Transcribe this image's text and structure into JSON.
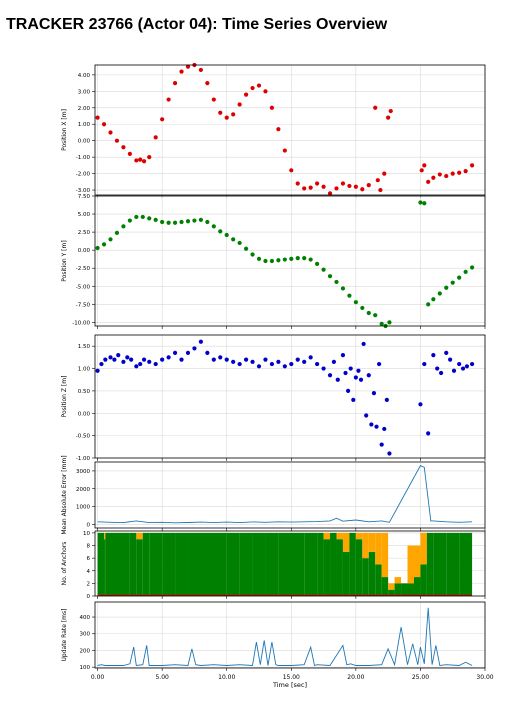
{
  "title": "TRACKER 23766 (Actor 04): Time Series Overview",
  "chart_data": [
    {
      "type": "scatter",
      "ylabel": "Position X [m]",
      "ylim": [
        -3.3,
        4.6
      ],
      "yticks": [
        "4.00",
        "3.00",
        "2.00",
        "1.00",
        "0.00",
        "-1.00",
        "-2.00",
        "-3.00"
      ],
      "ytick_values": [
        4,
        3,
        2,
        1,
        0,
        -1,
        -2,
        -3
      ],
      "xlim": [
        -0.2,
        30
      ],
      "color": "#dd0000",
      "grid": true,
      "x": [
        0,
        0.5,
        1,
        1.5,
        2,
        2.5,
        3,
        3.3,
        3.6,
        4,
        4.5,
        5,
        5.5,
        6,
        6.5,
        7,
        7.5,
        8,
        8.5,
        9,
        9.5,
        10,
        10.5,
        11,
        11.5,
        12,
        12.5,
        13,
        13.5,
        14,
        14.5,
        15,
        15.5,
        16,
        16.5,
        17,
        17.5,
        18,
        18.5,
        19,
        19.5,
        20,
        20.5,
        21,
        21.5,
        21.7,
        21.9,
        22.2,
        22.5,
        22.7,
        25.1,
        25.3,
        25.6,
        26,
        26.5,
        27,
        27.5,
        28,
        28.5,
        29
      ],
      "y": [
        1.4,
        1.0,
        0.5,
        0.0,
        -0.4,
        -0.8,
        -1.2,
        -1.15,
        -1.25,
        -1.0,
        0.2,
        1.3,
        2.5,
        3.5,
        4.2,
        4.5,
        4.6,
        4.3,
        3.5,
        2.5,
        1.7,
        1.4,
        1.6,
        2.2,
        2.8,
        3.2,
        3.35,
        3.0,
        2.0,
        0.7,
        -0.6,
        -1.8,
        -2.6,
        -2.9,
        -2.85,
        -2.6,
        -2.8,
        -3.2,
        -2.9,
        -2.6,
        -2.75,
        -2.8,
        -2.95,
        -2.7,
        2.0,
        -2.4,
        -3.0,
        -2.0,
        1.4,
        1.8,
        -1.8,
        -1.5,
        -2.5,
        -2.25,
        -2.05,
        -2.15,
        -2.0,
        -1.95,
        -1.85,
        -1.5
      ]
    },
    {
      "type": "scatter",
      "ylabel": "Position Y [m]",
      "ylim": [
        -10.5,
        7.5
      ],
      "yticks": [
        "7.50",
        "5.00",
        "2.50",
        "0.00",
        "-2.50",
        "-5.00",
        "-7.50",
        "-10.00"
      ],
      "ytick_values": [
        7.5,
        5,
        2.5,
        0,
        -2.5,
        -5,
        -7.5,
        -10
      ],
      "xlim": [
        -0.2,
        30
      ],
      "color": "#008000",
      "grid": true,
      "x": [
        0,
        0.5,
        1,
        1.5,
        2,
        2.5,
        3,
        3.5,
        4,
        4.5,
        5,
        5.5,
        6,
        6.5,
        7,
        7.5,
        8,
        8.5,
        9,
        9.5,
        10,
        10.5,
        11,
        11.5,
        12,
        12.5,
        13,
        13.5,
        14,
        14.5,
        15,
        15.5,
        16,
        16.5,
        17,
        17.5,
        18,
        18.5,
        19,
        19.5,
        20,
        20.5,
        21,
        21.5,
        22,
        22.3,
        22.6,
        25,
        25.3,
        25.6,
        26,
        26.5,
        27,
        27.5,
        28,
        28.5,
        29
      ],
      "y": [
        0.3,
        0.8,
        1.5,
        2.4,
        3.3,
        4.1,
        4.6,
        4.6,
        4.4,
        4.2,
        3.9,
        3.8,
        3.8,
        3.9,
        4.0,
        4.1,
        4.2,
        3.9,
        3.3,
        2.6,
        2.1,
        1.5,
        1.0,
        0.2,
        -0.6,
        -1.2,
        -1.5,
        -1.5,
        -1.4,
        -1.3,
        -1.2,
        -1.1,
        -1.1,
        -1.3,
        -1.9,
        -2.7,
        -3.6,
        -4.4,
        -5.3,
        -6.3,
        -7.2,
        -8.0,
        -8.7,
        -9.0,
        -10.2,
        -10.5,
        -10.0,
        6.6,
        6.5,
        -7.5,
        -6.8,
        -6.0,
        -5.2,
        -4.5,
        -3.8,
        -3.0,
        -2.4
      ]
    },
    {
      "type": "scatter",
      "ylabel": "Position Z [m]",
      "ylim": [
        -1.0,
        1.75
      ],
      "yticks": [
        "1.50",
        "1.00",
        "0.50",
        "0.00",
        "-0.50",
        "-1.00"
      ],
      "ytick_values": [
        1.5,
        1.0,
        0.5,
        0.0,
        -0.5,
        -1.0
      ],
      "xlim": [
        -0.2,
        30
      ],
      "color": "#0000cc",
      "grid": true,
      "x": [
        0,
        0.3,
        0.6,
        1,
        1.3,
        1.6,
        2,
        2.3,
        2.6,
        3,
        3.3,
        3.6,
        4,
        4.5,
        5,
        5.5,
        6,
        6.5,
        7,
        7.5,
        8,
        8.5,
        9,
        9.5,
        10,
        10.5,
        11,
        11.5,
        12,
        12.5,
        13,
        13.5,
        14,
        14.5,
        15,
        15.5,
        16,
        16.5,
        17,
        17.5,
        18,
        18.3,
        18.6,
        19,
        19.2,
        19.4,
        19.6,
        19.8,
        20,
        20.2,
        20.4,
        20.6,
        20.8,
        21,
        21.2,
        21.4,
        21.6,
        21.8,
        22,
        22.2,
        22.4,
        22.6,
        25,
        25.3,
        25.6,
        26,
        26.3,
        26.6,
        27,
        27.3,
        27.6,
        28,
        28.3,
        28.6,
        29
      ],
      "y": [
        0.95,
        1.1,
        1.2,
        1.25,
        1.2,
        1.3,
        1.15,
        1.25,
        1.2,
        1.05,
        1.1,
        1.2,
        1.15,
        1.1,
        1.2,
        1.25,
        1.35,
        1.2,
        1.35,
        1.45,
        1.6,
        1.35,
        1.2,
        1.25,
        1.2,
        1.15,
        1.1,
        1.2,
        1.15,
        1.05,
        1.2,
        1.1,
        1.15,
        1.05,
        1.1,
        1.2,
        1.15,
        1.25,
        1.1,
        1.0,
        0.85,
        1.15,
        0.75,
        1.3,
        0.9,
        0.5,
        1.0,
        0.3,
        0.8,
        0.95,
        0.75,
        1.55,
        -0.05,
        0.85,
        -0.25,
        0.45,
        -0.3,
        1.1,
        -0.7,
        -0.35,
        0.3,
        -0.9,
        0.2,
        1.1,
        -0.45,
        1.3,
        1.0,
        0.9,
        1.35,
        1.2,
        0.95,
        1.1,
        1.0,
        1.05,
        1.1
      ]
    },
    {
      "type": "line",
      "ylabel": "Mean Absolute Error [mm]",
      "ylim": [
        -200,
        3500
      ],
      "yticks": [
        "3000",
        "2000",
        "1000",
        "0"
      ],
      "ytick_values": [
        3000,
        2000,
        1000,
        0
      ],
      "xlim": [
        -0.2,
        30
      ],
      "color": "#1f77b4",
      "grid": true,
      "x": [
        0,
        1,
        2,
        3,
        4,
        5,
        6,
        7,
        8,
        9,
        10,
        11,
        12,
        13,
        14,
        15,
        16,
        17,
        18,
        18.5,
        19,
        20,
        21,
        22,
        22.6,
        25,
        25.3,
        25.8,
        26,
        27,
        28,
        29
      ],
      "y": [
        150,
        120,
        100,
        200,
        100,
        120,
        90,
        110,
        130,
        100,
        130,
        100,
        140,
        120,
        150,
        130,
        150,
        160,
        200,
        350,
        180,
        250,
        150,
        200,
        120,
        3300,
        3200,
        200,
        200,
        150,
        120,
        150
      ]
    },
    {
      "type": "area",
      "ylabel": "No. of Anchors",
      "ylim": [
        0,
        10.3
      ],
      "yticks": [
        "10",
        "8",
        "6",
        "4",
        "2",
        "0"
      ],
      "ytick_values": [
        10,
        8,
        6,
        4,
        2,
        0
      ],
      "xlim": [
        -0.2,
        30
      ],
      "grid": true,
      "colors": {
        "green": "#008000",
        "orange": "#ffa500",
        "red": "#dd0000"
      },
      "x": [
        0,
        0.5,
        0.6,
        2.5,
        3,
        3.5,
        4,
        5,
        6,
        7,
        10,
        11,
        12,
        13,
        14,
        16,
        17,
        17.5,
        18,
        18.5,
        19,
        19.5,
        20,
        20.5,
        21,
        21.5,
        22,
        22.5,
        23,
        23.5,
        24,
        24.5,
        25,
        25.5,
        26,
        27,
        28,
        29
      ],
      "green": [
        10,
        9,
        10,
        10,
        9,
        10,
        10,
        10,
        10,
        10,
        10,
        10,
        10,
        10,
        10,
        10,
        10,
        9,
        10,
        9,
        7,
        10,
        9,
        6,
        7,
        5,
        3,
        1,
        2,
        2,
        2,
        3,
        5,
        10,
        10,
        10,
        10,
        10
      ],
      "orange": [
        0,
        1,
        0,
        0,
        1,
        0,
        0,
        0,
        0,
        0,
        0,
        0,
        0,
        0,
        0,
        0,
        0,
        1,
        0,
        1,
        3,
        0,
        1,
        4,
        3,
        5,
        7,
        1,
        1,
        0,
        6,
        5,
        5,
        0,
        0,
        0,
        0,
        0
      ]
    },
    {
      "type": "line",
      "ylabel": "Update Rate [ms]",
      "ylim": [
        95,
        490
      ],
      "yticks": [
        "400",
        "300",
        "200",
        "100"
      ],
      "ytick_values": [
        400,
        300,
        200,
        100
      ],
      "xlim": [
        -0.2,
        30
      ],
      "color": "#1f77b4",
      "grid": true,
      "xlabel": "Time [sec]",
      "xticks": [
        "0.00",
        "5.00",
        "10.00",
        "15.00",
        "20.00",
        "25.00",
        "30.00"
      ],
      "xtick_values": [
        0,
        5,
        10,
        15,
        20,
        25,
        30
      ],
      "x": [
        0,
        0.3,
        0.6,
        1,
        2,
        2.5,
        2.8,
        3,
        3.5,
        3.8,
        4,
        5,
        6,
        7,
        7.3,
        7.6,
        8,
        9,
        10,
        11,
        12,
        12.3,
        12.6,
        12.9,
        13.2,
        13.5,
        13.8,
        14,
        15,
        16,
        16.5,
        16.8,
        17,
        18,
        19,
        19.3,
        19.6,
        20,
        21,
        22,
        22.5,
        23,
        23.5,
        24,
        24.4,
        24.8,
        25,
        25.3,
        25.6,
        25.9,
        26.2,
        26.5,
        27,
        28,
        28.5,
        29
      ],
      "y": [
        110,
        115,
        110,
        110,
        110,
        120,
        220,
        110,
        115,
        230,
        110,
        110,
        115,
        110,
        210,
        115,
        110,
        115,
        110,
        115,
        110,
        250,
        115,
        260,
        110,
        250,
        115,
        110,
        110,
        115,
        220,
        110,
        115,
        110,
        230,
        115,
        120,
        110,
        110,
        115,
        210,
        115,
        340,
        115,
        240,
        115,
        220,
        120,
        455,
        115,
        230,
        110,
        115,
        110,
        130,
        110
      ]
    }
  ]
}
